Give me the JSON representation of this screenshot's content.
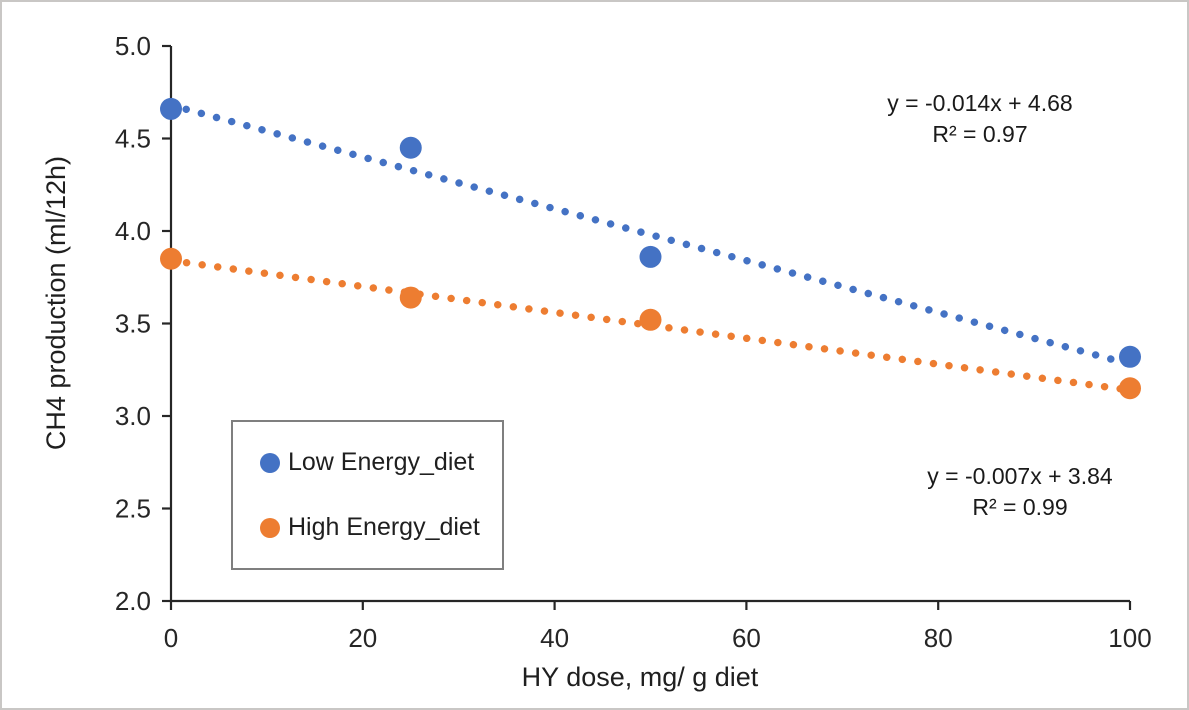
{
  "chart_data": {
    "type": "scatter",
    "title": "",
    "xlabel": "HY dose, mg/ g diet",
    "ylabel": "CH4 production (ml/12h)",
    "xlim": [
      0,
      100
    ],
    "ylim": [
      2.0,
      5.0
    ],
    "x_ticks": [
      {
        "value": 0,
        "label": "0"
      },
      {
        "value": 20,
        "label": "20"
      },
      {
        "value": 40,
        "label": "40"
      },
      {
        "value": 60,
        "label": "60"
      },
      {
        "value": 80,
        "label": "80"
      },
      {
        "value": 100,
        "label": "100"
      }
    ],
    "y_ticks": [
      {
        "value": 5.0,
        "label": "5.0"
      },
      {
        "value": 4.5,
        "label": "4.5"
      },
      {
        "value": 4.0,
        "label": "4.0"
      },
      {
        "value": 3.5,
        "label": "3.5"
      },
      {
        "value": 3.0,
        "label": "3.0"
      },
      {
        "value": 2.5,
        "label": "2.5"
      },
      {
        "value": 2.0,
        "label": "2.0"
      }
    ],
    "grid": false,
    "legend_position": "inside lower-left",
    "series": [
      {
        "name": "Low Energy_diet",
        "color": "#4472C4",
        "marker": "circle",
        "x": [
          0,
          25,
          50,
          100
        ],
        "y": [
          4.66,
          4.45,
          3.86,
          3.32
        ],
        "trendline": {
          "style": "dotted",
          "slope": -0.014,
          "intercept": 4.68,
          "equation": "y = -0.014x + 4.68",
          "r2_label": "R² = 0.97"
        }
      },
      {
        "name": "High Energy_diet",
        "color": "#ED7D31",
        "marker": "circle",
        "x": [
          0,
          25,
          50,
          100
        ],
        "y": [
          3.85,
          3.64,
          3.52,
          3.15
        ],
        "trendline": {
          "style": "dotted",
          "slope": -0.007,
          "intercept": 3.84,
          "equation": "y = -0.007x + 3.84",
          "r2_label": "R² = 0.99"
        }
      }
    ],
    "colors": {
      "axis": "#262626",
      "tick_text": "#262626",
      "legend_border": "#7f7f7f",
      "canvas_border": "#c9c7c5",
      "background": "#ffffff"
    }
  }
}
